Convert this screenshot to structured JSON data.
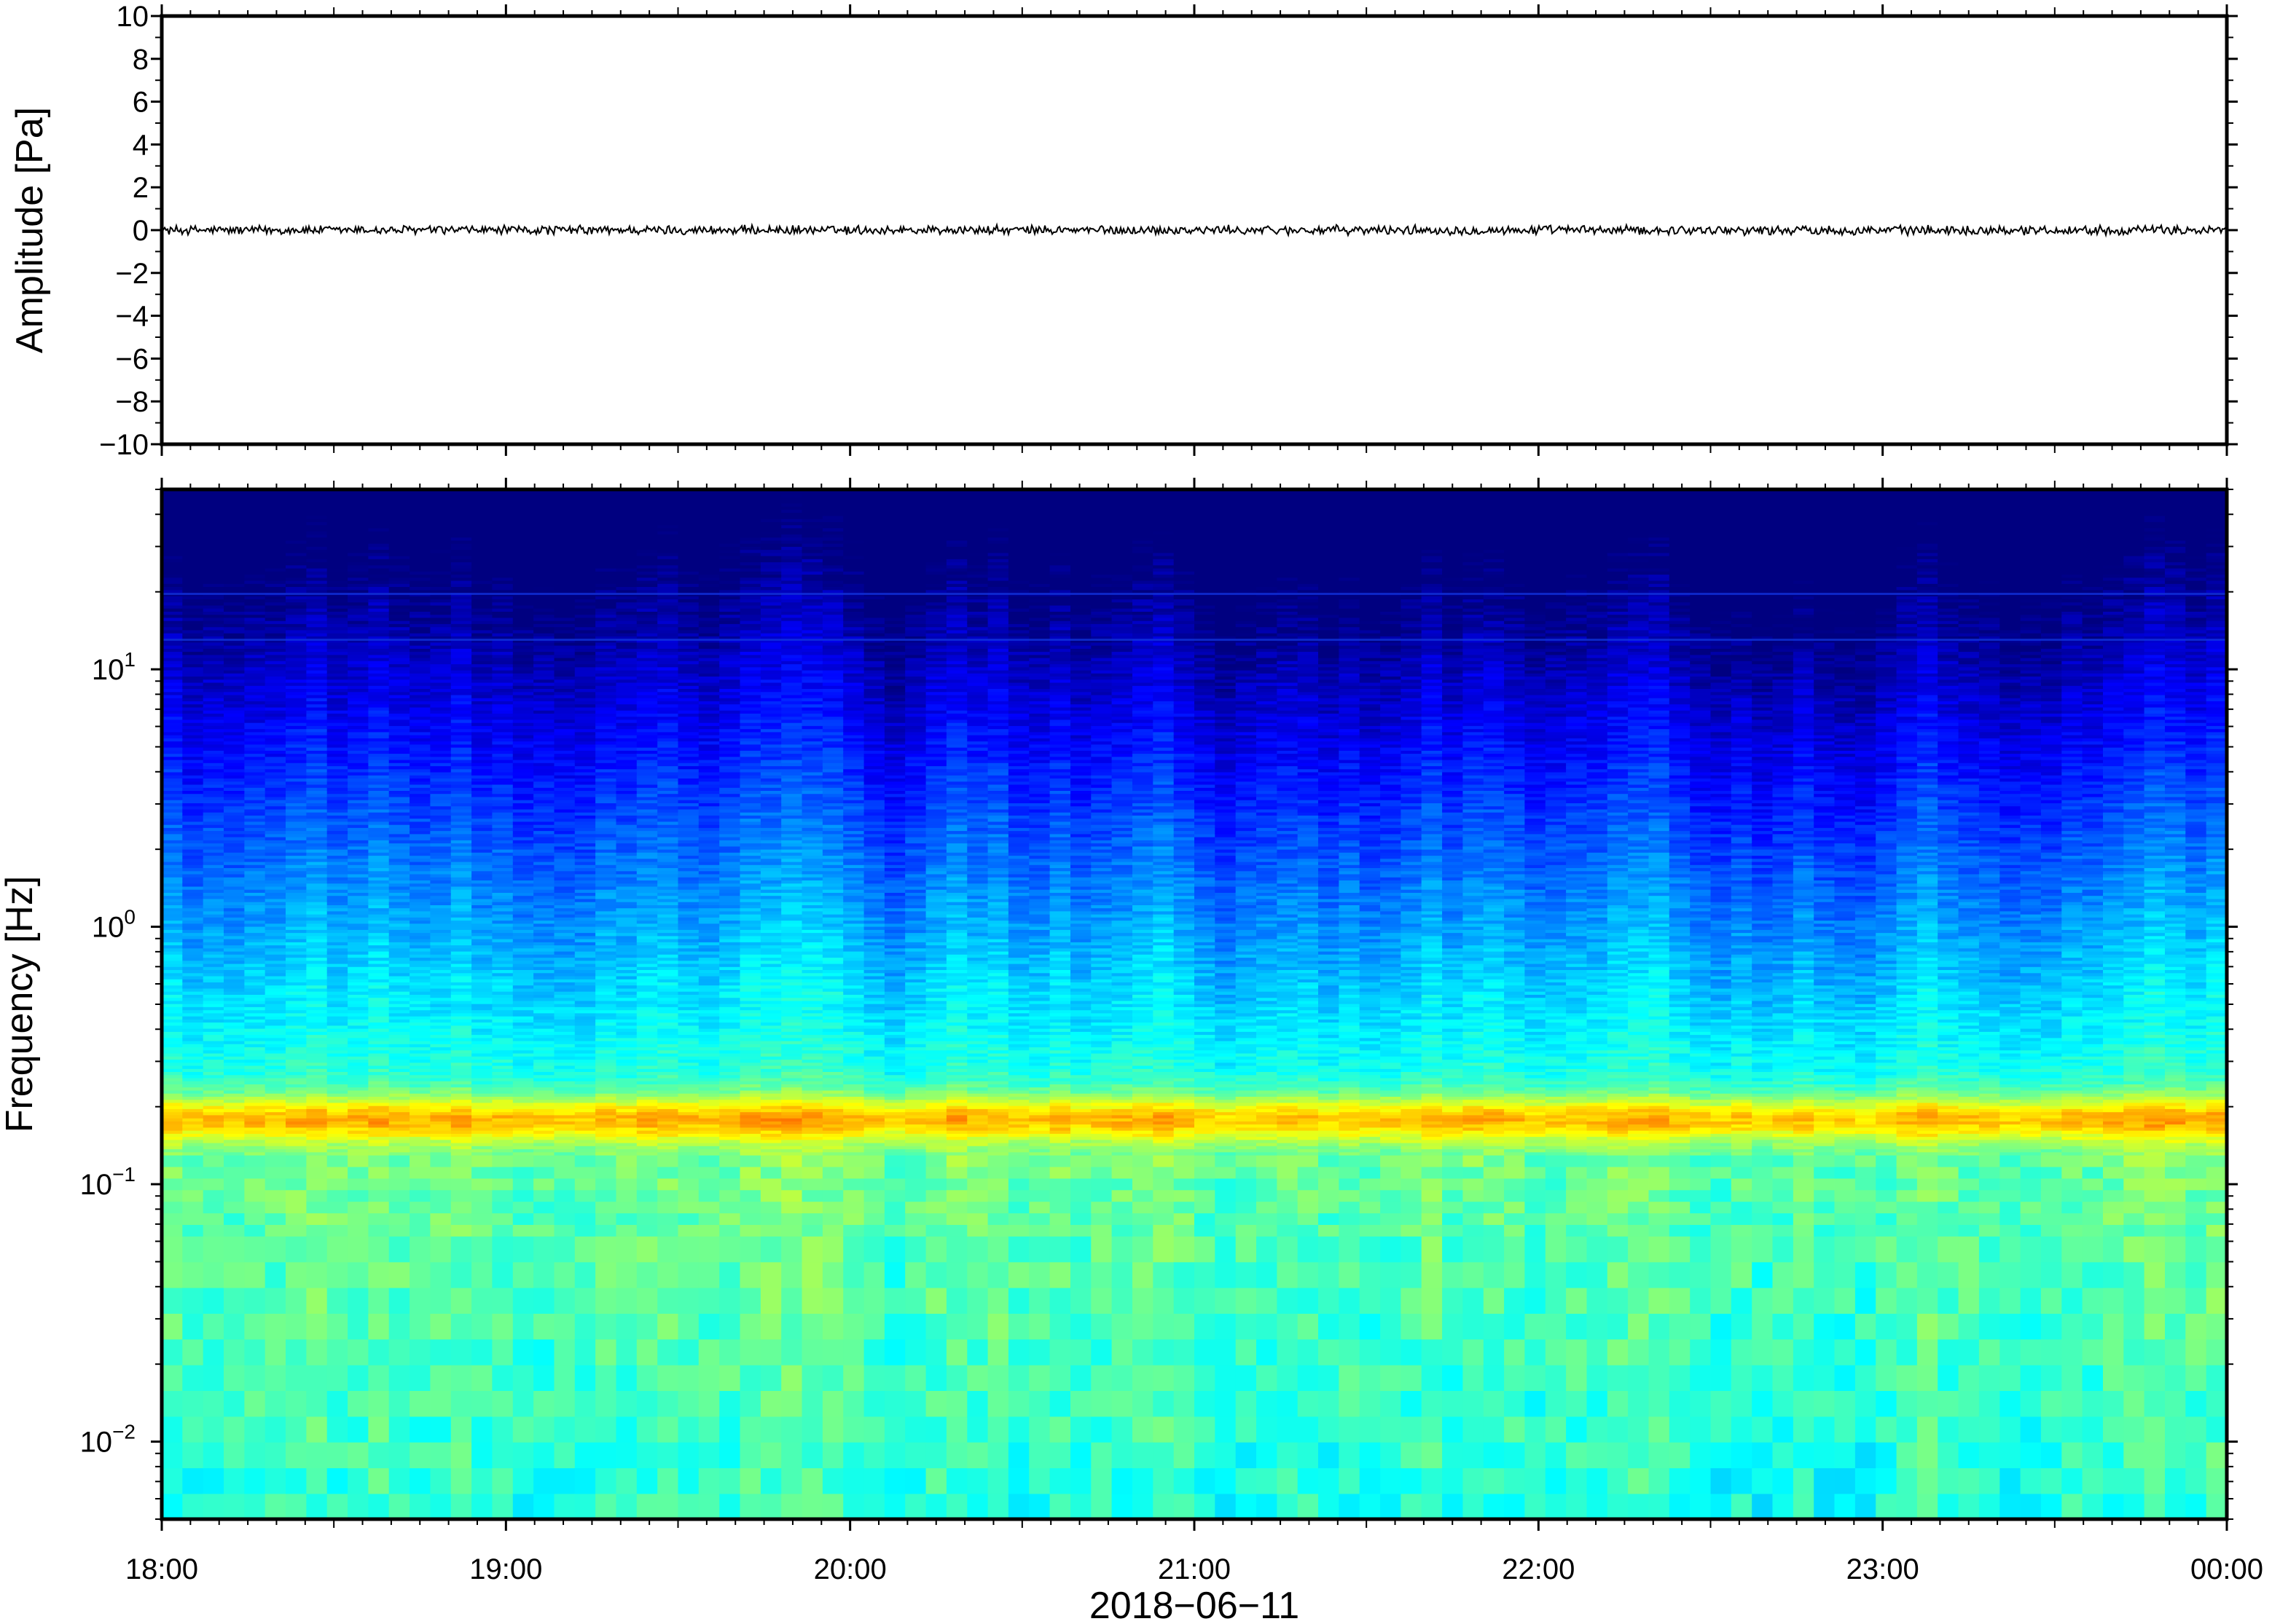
{
  "chart_data": [
    {
      "type": "line",
      "panel": "waveform",
      "ylabel": "Amplitude [Pa]",
      "ylim": [
        -10,
        10
      ],
      "yticks": [
        10,
        8,
        6,
        4,
        2,
        0,
        -2,
        -4,
        -6,
        -8,
        -10
      ],
      "ytick_labels": [
        "10",
        "8",
        "6",
        "4",
        "2",
        "0",
        "−2",
        "−4",
        "−6",
        "−8",
        "−10"
      ],
      "series": [
        {
          "description_values": "near-zero noise trace",
          "values_range": [
            -0.25,
            0.25
          ],
          "color": "#000000"
        }
      ],
      "grid": false
    },
    {
      "type": "heatmap",
      "panel": "spectrogram",
      "ylabel": "Frequency [Hz]",
      "yscale": "log",
      "ylim": [
        0.005,
        50
      ],
      "yticks": [
        0.01,
        0.1,
        1,
        10
      ],
      "ytick_labels": [
        {
          "base": "10",
          "exp": "−2"
        },
        {
          "base": "10",
          "exp": "−1"
        },
        {
          "base": "10",
          "exp": "0"
        },
        {
          "base": "10",
          "exp": "1"
        }
      ],
      "colormap": "jet",
      "peak_band_hz": 0.18,
      "line_artifacts_hz": [
        20,
        13
      ]
    }
  ],
  "xaxis": {
    "xlabel": "2018−06−11",
    "xticks": [
      "18:00",
      "19:00",
      "20:00",
      "21:00",
      "22:00",
      "23:00",
      "00:00"
    ]
  }
}
